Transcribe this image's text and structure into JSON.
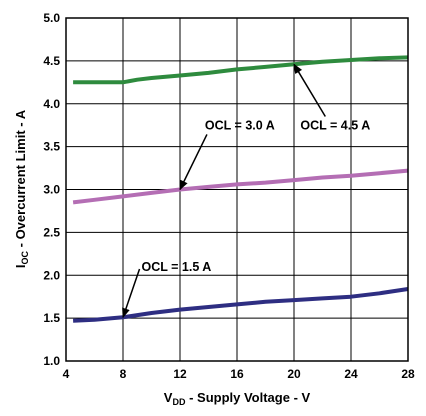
{
  "chart_data": {
    "type": "line",
    "xlabel": {
      "main": "V",
      "sub": "DD",
      "rest": " - Supply Voltage - V"
    },
    "ylabel": {
      "main": "I",
      "sub": "OC",
      "rest": " - Overcurrent Limit - A"
    },
    "xlim": [
      4,
      28
    ],
    "ylim": [
      1.0,
      5.0
    ],
    "xticks": [
      4,
      8,
      12,
      16,
      20,
      24,
      28
    ],
    "yticks": [
      "1.0",
      "1.5",
      "2.0",
      "2.5",
      "3.0",
      "3.5",
      "4.0",
      "4.5",
      "5.0"
    ],
    "grid": true,
    "series": [
      {
        "color": "#2e8b3e",
        "x": [
          4.5,
          6,
          8,
          9,
          10,
          12,
          14,
          16,
          18,
          20,
          22,
          24,
          26,
          28
        ],
        "y": [
          4.25,
          4.25,
          4.25,
          4.28,
          4.3,
          4.33,
          4.36,
          4.4,
          4.43,
          4.46,
          4.49,
          4.51,
          4.53,
          4.54
        ]
      },
      {
        "color": "#b46eb4",
        "x": [
          4.5,
          6,
          8,
          10,
          12,
          14,
          16,
          18,
          20,
          22,
          24,
          26,
          28
        ],
        "y": [
          2.85,
          2.88,
          2.92,
          2.96,
          3.0,
          3.03,
          3.06,
          3.08,
          3.11,
          3.14,
          3.16,
          3.19,
          3.22
        ]
      },
      {
        "color": "#2e2e82",
        "x": [
          4.5,
          6,
          8,
          10,
          12,
          14,
          16,
          18,
          20,
          22,
          24,
          26,
          28
        ],
        "y": [
          1.47,
          1.48,
          1.51,
          1.56,
          1.6,
          1.63,
          1.66,
          1.69,
          1.71,
          1.73,
          1.75,
          1.79,
          1.84
        ]
      }
    ],
    "annotations": [
      {
        "text": "OCL = 1.5 A",
        "x": 9.3,
        "y": 2.05,
        "anchor": "start",
        "point_x": 8,
        "point_y": 1.51
      },
      {
        "text": "OCL = 3.0 A",
        "x": 16.2,
        "y": 3.7,
        "anchor": "middle",
        "point_x": 12,
        "point_y": 3.0
      },
      {
        "text": "OCL = 4.5 A",
        "x": 22.9,
        "y": 3.7,
        "anchor": "middle",
        "point_x": 20,
        "point_y": 4.46
      }
    ]
  }
}
